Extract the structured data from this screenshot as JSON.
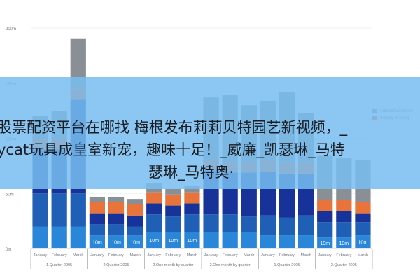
{
  "chart_data": {
    "type": "bar",
    "stacked": true,
    "y_ticks": [
      "200m",
      "150m",
      "100m",
      "50m",
      "0m"
    ],
    "ylim": [
      0,
      200
    ],
    "legend": {
      "position": "right",
      "entries": [
        "National Company",
        "Prolong Bearing"
      ]
    },
    "categories": [
      "January",
      "February",
      "March",
      "January",
      "February",
      "March",
      "January",
      "February",
      "March",
      "January",
      "February",
      "March",
      "January",
      "February",
      "March",
      "January",
      "February",
      "March"
    ],
    "groups": [
      {
        "label": "1.Quarter 2005",
        "start": 0,
        "count": 3
      },
      {
        "label": "2.Quarter 2005",
        "start": 3,
        "count": 3
      },
      {
        "label": "2.One month by quarter",
        "start": 6,
        "count": 3
      },
      {
        "label": "2.One month by quarter",
        "start": 9,
        "count": 3
      },
      {
        "label": "1.Quarter 2005",
        "start": 12,
        "count": 3
      },
      {
        "label": "2.Quarter 2005",
        "start": 15,
        "count": 3
      }
    ],
    "series": [
      {
        "values": [
          20,
          20,
          20,
          12,
          12,
          12,
          15,
          15,
          15,
          15,
          15,
          15,
          12,
          12,
          12,
          10,
          10,
          12
        ]
      },
      {
        "values": [
          30,
          30,
          30,
          10,
          10,
          8,
          16,
          14,
          16,
          16,
          16,
          14,
          18,
          16,
          18,
          14,
          14,
          12
        ]
      },
      {
        "values": [
          40,
          40,
          85,
          10,
          10,
          10,
          10,
          10,
          10,
          40,
          38,
          40,
          40,
          40,
          38,
          10,
          10,
          8
        ]
      },
      {
        "values": [
          10,
          10,
          10,
          10,
          10,
          10,
          10,
          10,
          10,
          10,
          10,
          10,
          10,
          10,
          10,
          10,
          10,
          10
        ]
      },
      {
        "values": [
          20,
          25,
          45,
          5,
          5,
          5,
          8,
          5,
          6,
          56,
          60,
          51,
          54,
          64,
          45,
          40,
          38,
          38
        ]
      }
    ],
    "value_labels": [
      "",
      "",
      "",
      "10m",
      "10m",
      "10m",
      "10m",
      "10m",
      "10m",
      "",
      "",
      "",
      "",
      "",
      "",
      "10m",
      "10m",
      "10m"
    ],
    "colors": [
      "#2a86d8",
      "#1f5fb5",
      "#17339a",
      "#e8743b",
      "#8a8e95"
    ]
  },
  "overlay": {
    "line1": "股票配资平台在哪找 梅根发布莉莉贝特园艺新视频，_",
    "line2": "ycat玩具成皇室新宠，趣味十足！_威廉_凯瑟琳_马特",
    "line3": "瑟琳_马特奥·"
  }
}
